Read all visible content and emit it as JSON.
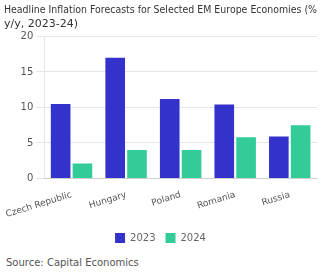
{
  "chart_data": {
    "type": "bar",
    "title": "Headline Inflation Forecasts for Selected EM Europe Economies (%\ny/y, 2023-24)",
    "categories": [
      "Czech Republic",
      "Hungary",
      "Poland",
      "Romania",
      "Russia"
    ],
    "series": [
      {
        "name": "2023",
        "color": "#3333cc",
        "values": [
          10.5,
          17.0,
          11.2,
          10.4,
          5.9
        ]
      },
      {
        "name": "2024",
        "color": "#33cc99",
        "values": [
          2.1,
          4.0,
          4.0,
          5.8,
          7.5
        ]
      }
    ],
    "ylim": [
      0,
      20
    ],
    "yticks": [
      0,
      5,
      10,
      15,
      20
    ],
    "grid": true,
    "legend": "bottom",
    "annotations": [
      "Source: Capital Economics"
    ]
  }
}
